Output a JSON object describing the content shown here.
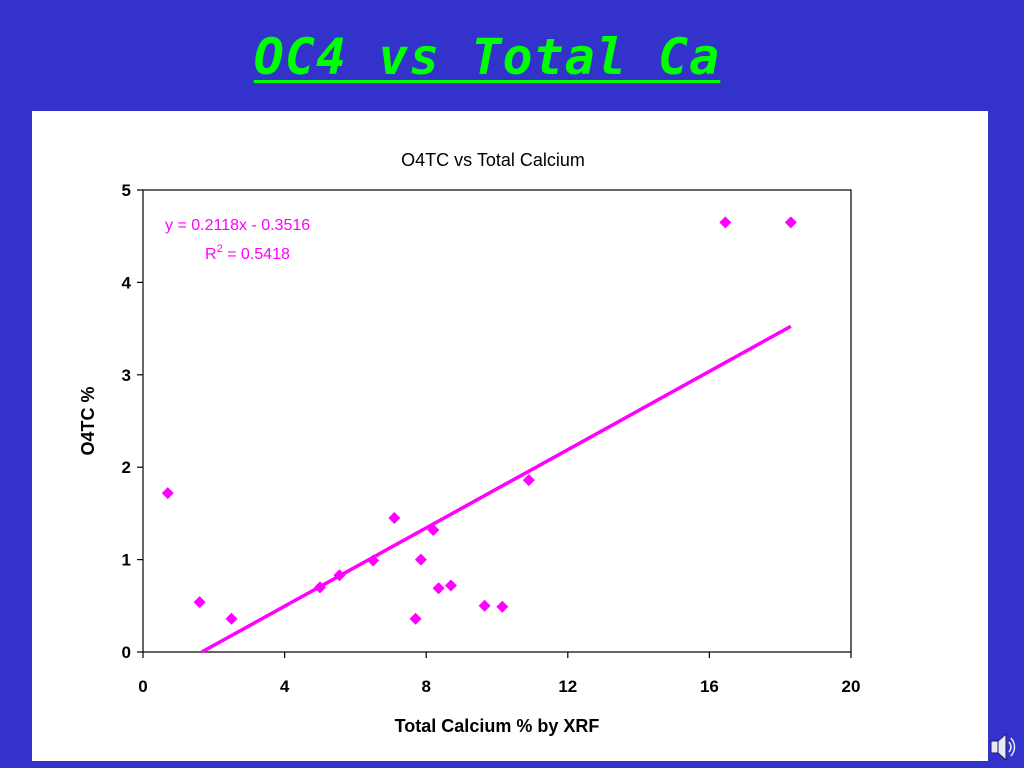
{
  "slide": {
    "title": "OC4 vs Total Ca",
    "title_color": "#00ff00",
    "background_color": "#3333cc",
    "speaker_icon": "speaker-icon"
  },
  "chart_data": {
    "type": "scatter",
    "title": "O4TC vs Total Calcium",
    "xlabel": "Total Calcium % by XRF",
    "ylabel": "O4TC %",
    "xlim": [
      0,
      20
    ],
    "ylim": [
      0,
      5
    ],
    "xticks": [
      0,
      4,
      8,
      12,
      16,
      20
    ],
    "yticks": [
      0,
      1,
      2,
      3,
      4,
      5
    ],
    "grid": false,
    "marker_color": "#ff00ff",
    "series": [
      {
        "points": [
          [
            0.7,
            1.72
          ],
          [
            1.6,
            0.54
          ],
          [
            2.5,
            0.36
          ],
          [
            5.0,
            0.7
          ],
          [
            5.55,
            0.83
          ],
          [
            6.5,
            0.99
          ],
          [
            7.1,
            1.45
          ],
          [
            7.7,
            0.36
          ],
          [
            7.85,
            1.0
          ],
          [
            8.2,
            1.32
          ],
          [
            8.35,
            0.69
          ],
          [
            8.7,
            0.72
          ],
          [
            9.65,
            0.5
          ],
          [
            10.15,
            0.49
          ],
          [
            10.9,
            1.86
          ],
          [
            16.45,
            4.65
          ],
          [
            18.3,
            4.65
          ]
        ]
      }
    ],
    "trendline": {
      "slope": 0.2118,
      "intercept": -0.3516,
      "x_range": [
        1.66,
        18.3
      ],
      "equation": "y = 0.2118x - 0.3516",
      "r2_prefix": "R",
      "r2_sup": "2",
      "r2_suffix": " = 0.5418",
      "color": "#ff00ff"
    }
  }
}
